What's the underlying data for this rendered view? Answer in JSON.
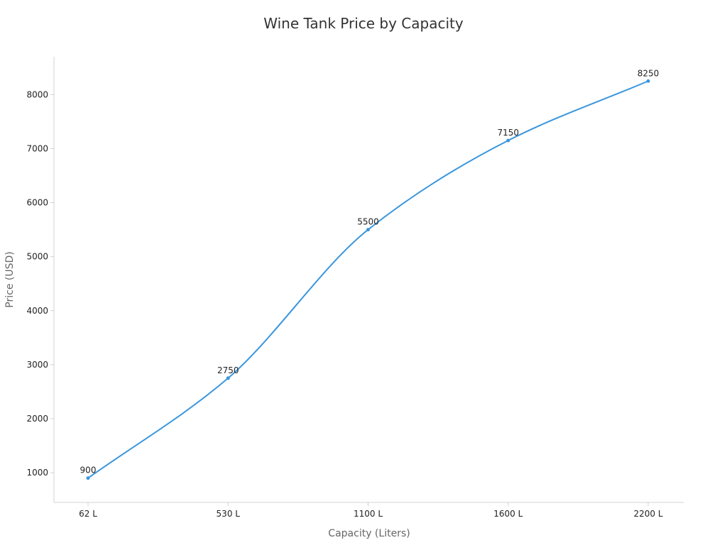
{
  "chart_data": {
    "type": "line",
    "title": "Wine Tank Price by Capacity",
    "xlabel": "Capacity (Liters)",
    "ylabel": "Price (USD)",
    "categories": [
      "62 L",
      "530 L",
      "1100 L",
      "1600 L",
      "2200 L"
    ],
    "series": [
      {
        "values": [
          900,
          2750,
          5500,
          7150,
          8250
        ],
        "color": "#3a96dd"
      }
    ],
    "ylim": [
      450,
      8700
    ],
    "yticks": [
      1000,
      2000,
      3000,
      4000,
      5000,
      6000,
      7000,
      8000
    ],
    "grid": false,
    "legend": "none",
    "smooth": true,
    "data_labels": true
  }
}
